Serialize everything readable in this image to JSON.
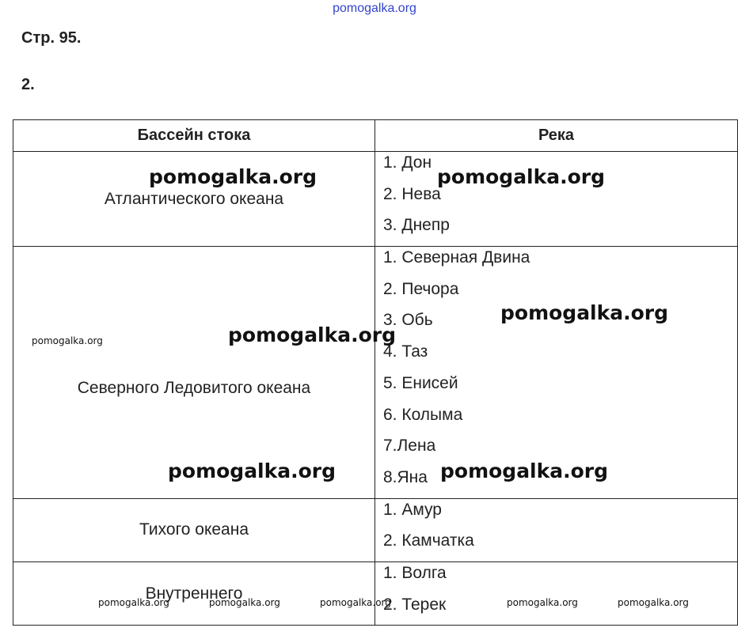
{
  "watermark_top": "pomogalka.org",
  "page_label": "Стр. 95.",
  "task_number": "2.",
  "table": {
    "headers": [
      "Бассейн стока",
      "Река"
    ],
    "rows": [
      {
        "basin": "Атлантического океана",
        "rivers": [
          "1. Дон",
          "2. Нева",
          "3. Днепр"
        ]
      },
      {
        "basin": "Северного Ледовитого океана",
        "rivers": [
          "1. Северная Двина",
          "2. Печора",
          "3. Обь",
          "4. Таз",
          "5. Енисей",
          "6. Колыма",
          "7.Лена",
          "8.Яна"
        ]
      },
      {
        "basin": "Тихого океана",
        "rivers": [
          "1. Амур",
          "2. Камчатка"
        ]
      },
      {
        "basin": "Внутреннего",
        "rivers": [
          "1. Волга",
          "2. Терек"
        ]
      }
    ]
  },
  "watermark": "pomogalka.org"
}
